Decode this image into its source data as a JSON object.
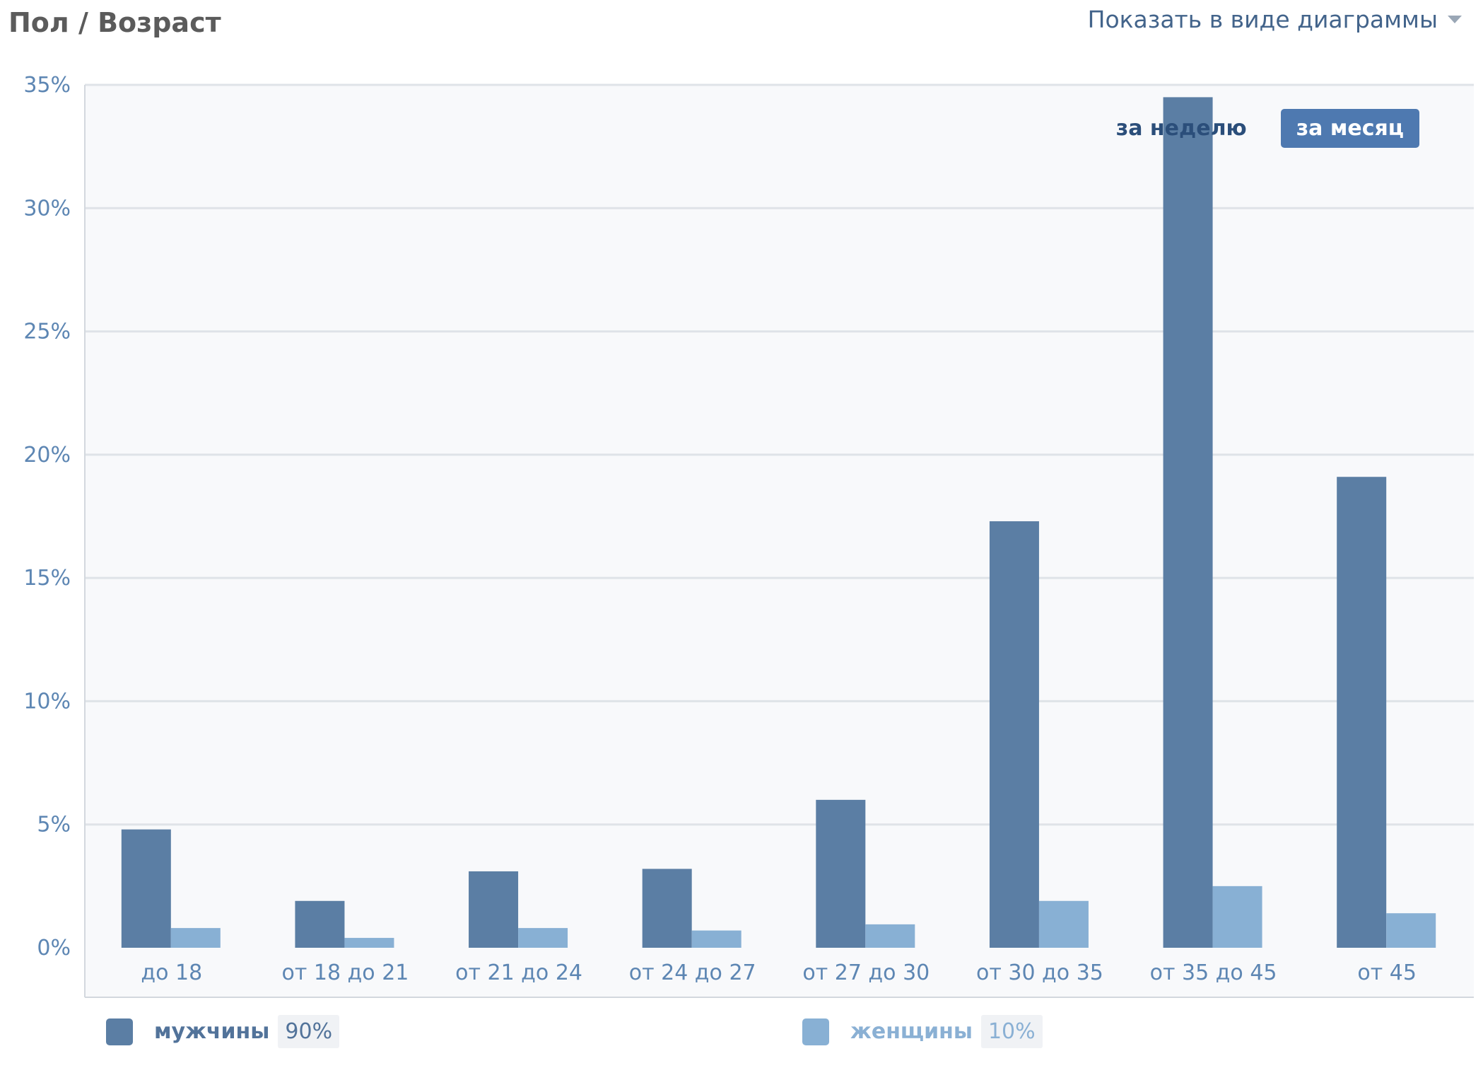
{
  "header": {
    "title": "Пол / Возраст",
    "view_label": "Показать в виде диаграммы"
  },
  "period_tabs": [
    {
      "label": "за неделю",
      "active": false
    },
    {
      "label": "за месяц",
      "active": true
    }
  ],
  "legend": [
    {
      "name": "мужчины",
      "percent": "90%",
      "color": "#5b7ea4",
      "text_color": "#52739a"
    },
    {
      "name": "женщины",
      "percent": "10%",
      "color": "#88b0d4",
      "text_color": "#8ab0d4"
    }
  ],
  "colors": {
    "plot_bg": "#f8f9fb",
    "grid": "#dfe3e8",
    "axis": "#d3d8de",
    "tick_text": "#5d86b3"
  },
  "chart_data": {
    "type": "bar",
    "categories": [
      "до 18",
      "от 18 до 21",
      "от 21 до 24",
      "от 24 до 27",
      "от 27 до 30",
      "от 30 до 35",
      "от 35 до 45",
      "от 45"
    ],
    "series": [
      {
        "name": "мужчины",
        "values": [
          4.8,
          1.9,
          3.1,
          3.2,
          6.0,
          17.3,
          34.5,
          19.1
        ]
      },
      {
        "name": "женщины",
        "values": [
          0.8,
          0.4,
          0.8,
          0.7,
          0.95,
          1.9,
          2.5,
          1.4
        ]
      }
    ],
    "yticks": [
      "0%",
      "5%",
      "10%",
      "15%",
      "20%",
      "25%",
      "30%",
      "35%"
    ],
    "ylim": [
      0,
      35
    ],
    "grid": true,
    "legend_position": "bottom"
  }
}
